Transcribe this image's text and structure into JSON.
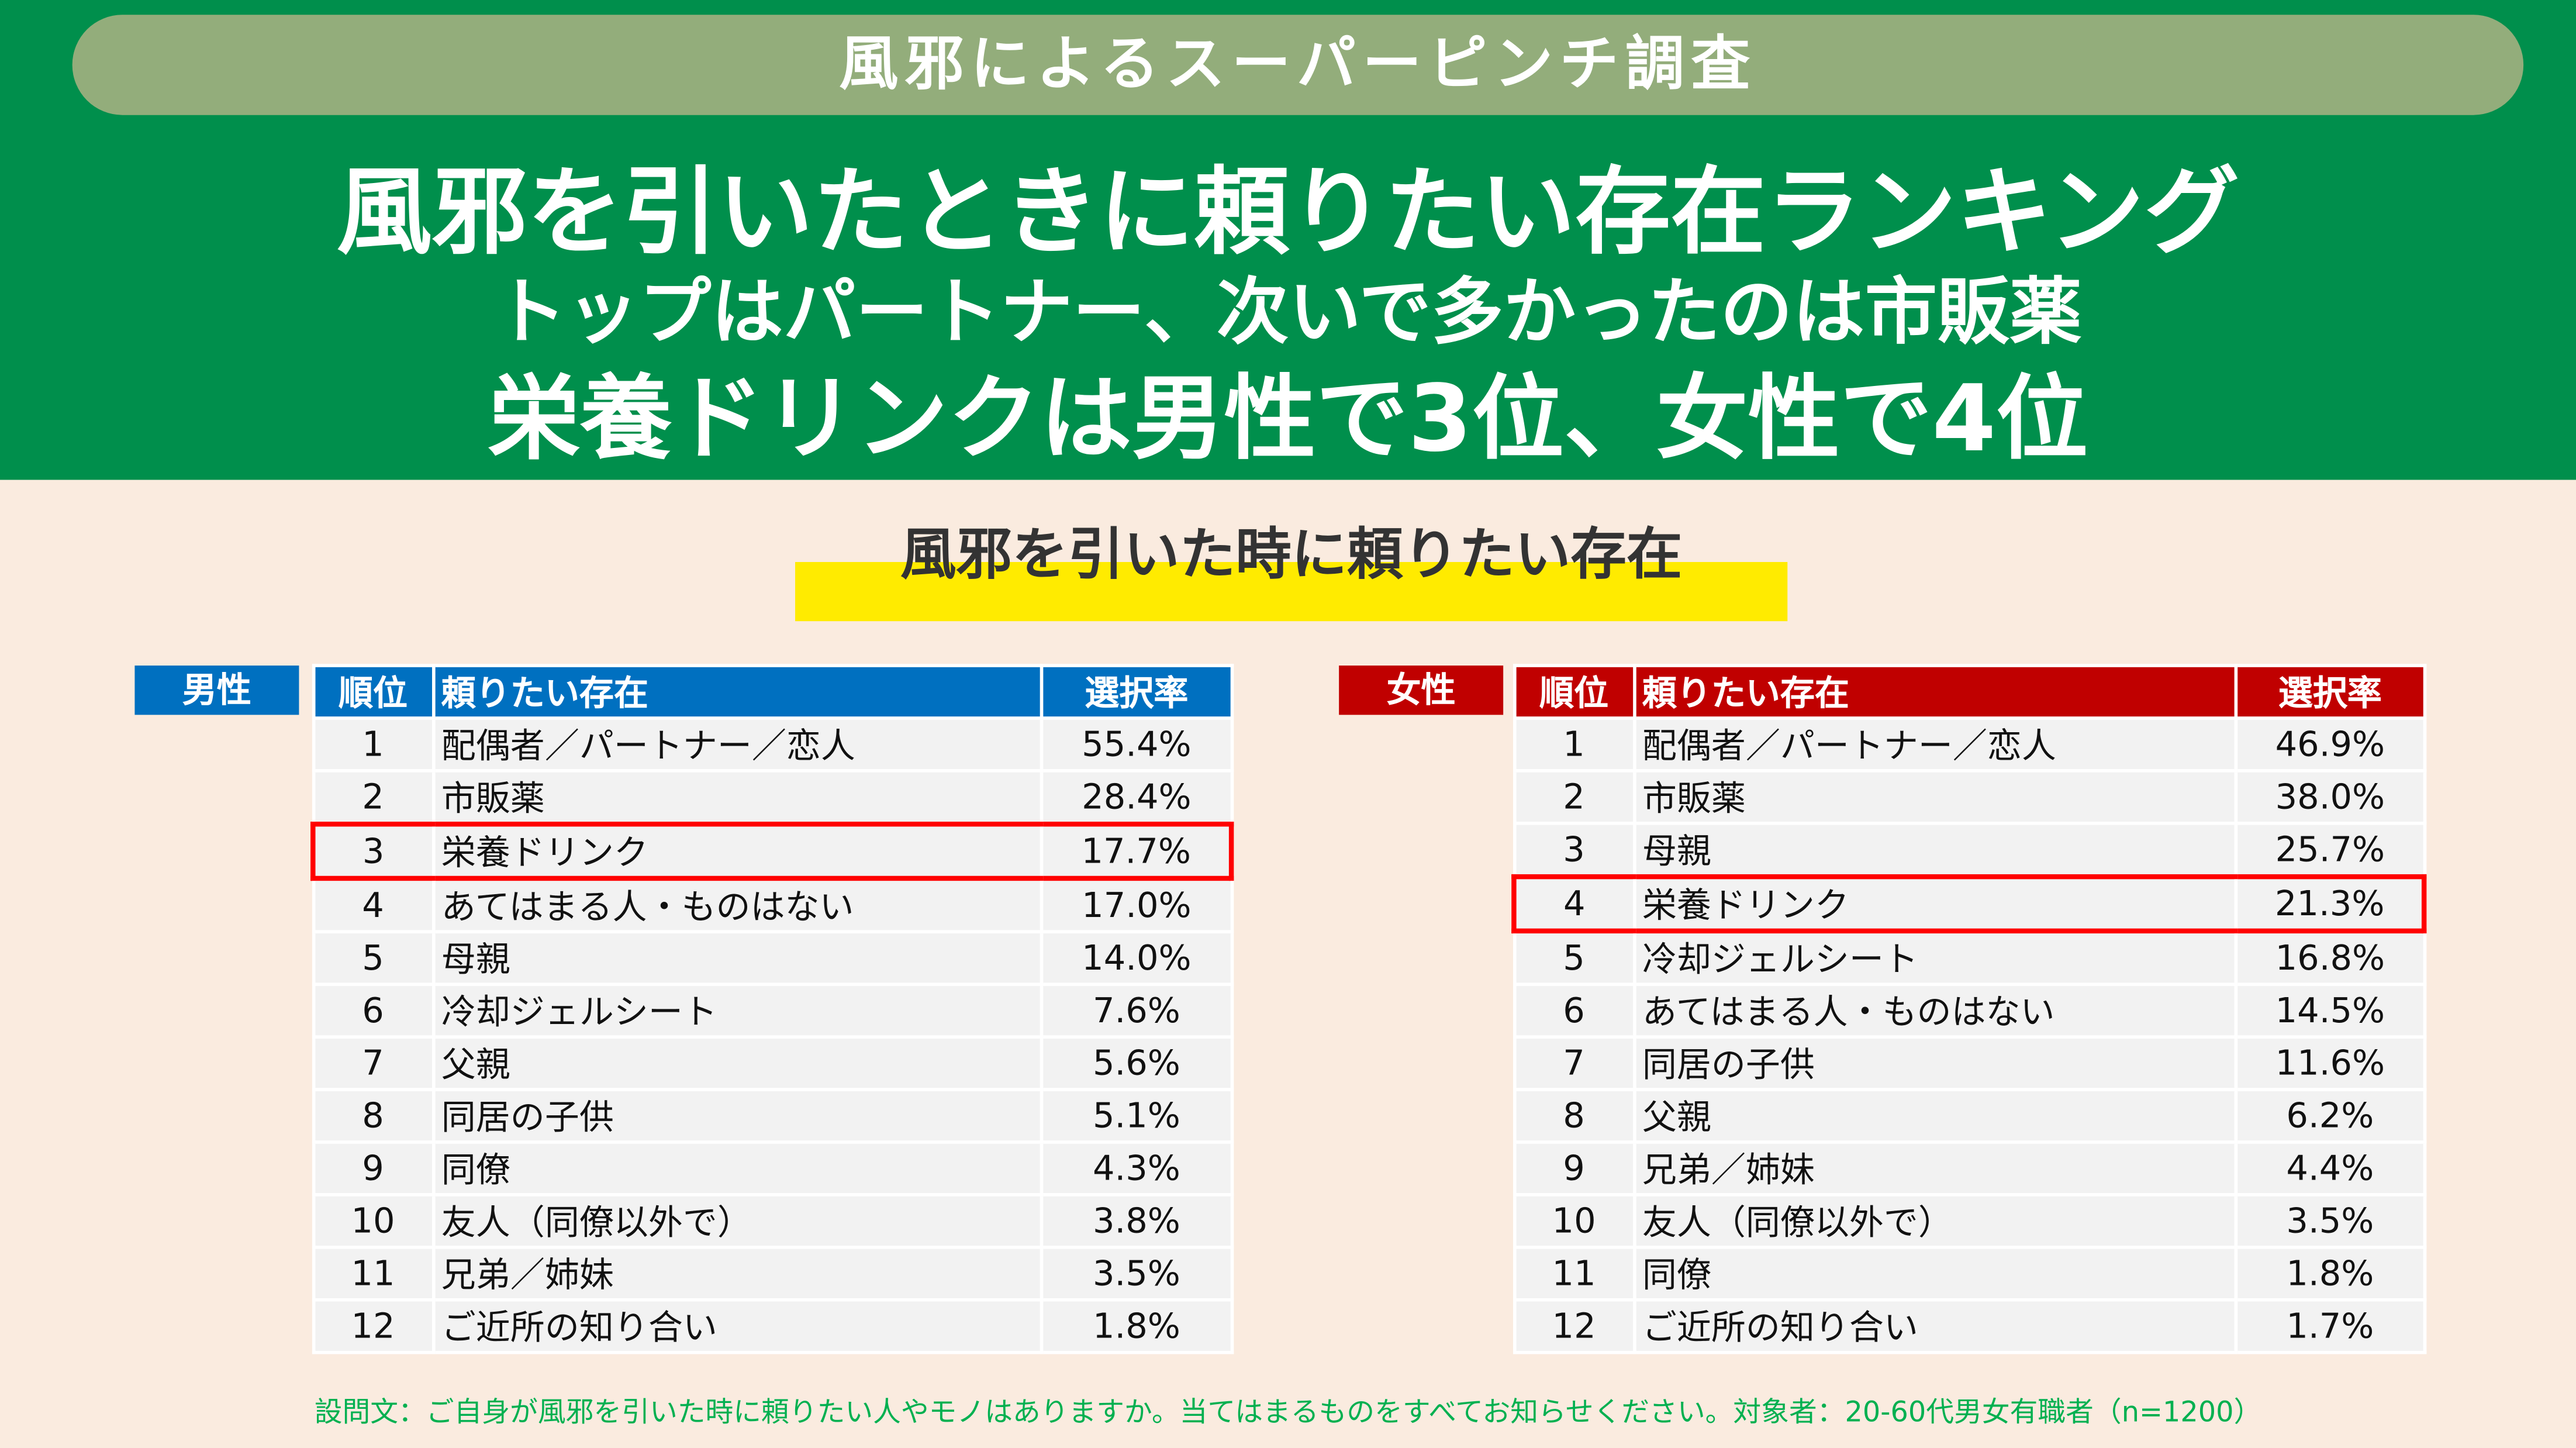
{
  "banner": "風邪によるスーパーピンチ調査",
  "headline": [
    "風邪を引いたときに頼りたい存在ランキング",
    "トップはパートナー、次いで多かったのは市販薬",
    "栄養ドリンクは男性で3位、女性で4位"
  ],
  "section_title": "風邪を引いた時に頼りたい存在",
  "colors": {
    "header_bg": "#008F4C",
    "banner_bg": "#93AD7B",
    "male": "#0070C0",
    "female": "#C00000",
    "highlight": "#FF0000",
    "marker": "#FFEB00",
    "note": "#00B050"
  },
  "columns": [
    "順位",
    "頼りたい存在",
    "選択率"
  ],
  "male": {
    "label": "男性",
    "highlight_rank": 3,
    "rows": [
      [
        "1",
        "配偶者／パートナー／恋人",
        "55.4%"
      ],
      [
        "2",
        "市販薬",
        "28.4%"
      ],
      [
        "3",
        "栄養ドリンク",
        "17.7%"
      ],
      [
        "4",
        "あてはまる人・ものはない",
        "17.0%"
      ],
      [
        "5",
        "母親",
        "14.0%"
      ],
      [
        "6",
        "冷却ジェルシート",
        "7.6%"
      ],
      [
        "7",
        "父親",
        "5.6%"
      ],
      [
        "8",
        "同居の子供",
        "5.1%"
      ],
      [
        "9",
        "同僚",
        "4.3%"
      ],
      [
        "10",
        "友人（同僚以外で）",
        "3.8%"
      ],
      [
        "11",
        "兄弟／姉妹",
        "3.5%"
      ],
      [
        "12",
        "ご近所の知り合い",
        "1.8%"
      ]
    ]
  },
  "female": {
    "label": "女性",
    "highlight_rank": 4,
    "rows": [
      [
        "1",
        "配偶者／パートナー／恋人",
        "46.9%"
      ],
      [
        "2",
        "市販薬",
        "38.0%"
      ],
      [
        "3",
        "母親",
        "25.7%"
      ],
      [
        "4",
        "栄養ドリンク",
        "21.3%"
      ],
      [
        "5",
        "冷却ジェルシート",
        "16.8%"
      ],
      [
        "6",
        "あてはまる人・ものはない",
        "14.5%"
      ],
      [
        "7",
        "同居の子供",
        "11.6%"
      ],
      [
        "8",
        "父親",
        "6.2%"
      ],
      [
        "9",
        "兄弟／姉妹",
        "4.4%"
      ],
      [
        "10",
        "友人（同僚以外で）",
        "3.5%"
      ],
      [
        "11",
        "同僚",
        "1.8%"
      ],
      [
        "12",
        "ご近所の知り合い",
        "1.7%"
      ]
    ]
  },
  "footnote": "設問文：ご自身が風邪を引いた時に頼りたい人やモノはありますか。当てはまるものをすべてお知らせください。対象者：20-60代男女有職者（n=1200）"
}
